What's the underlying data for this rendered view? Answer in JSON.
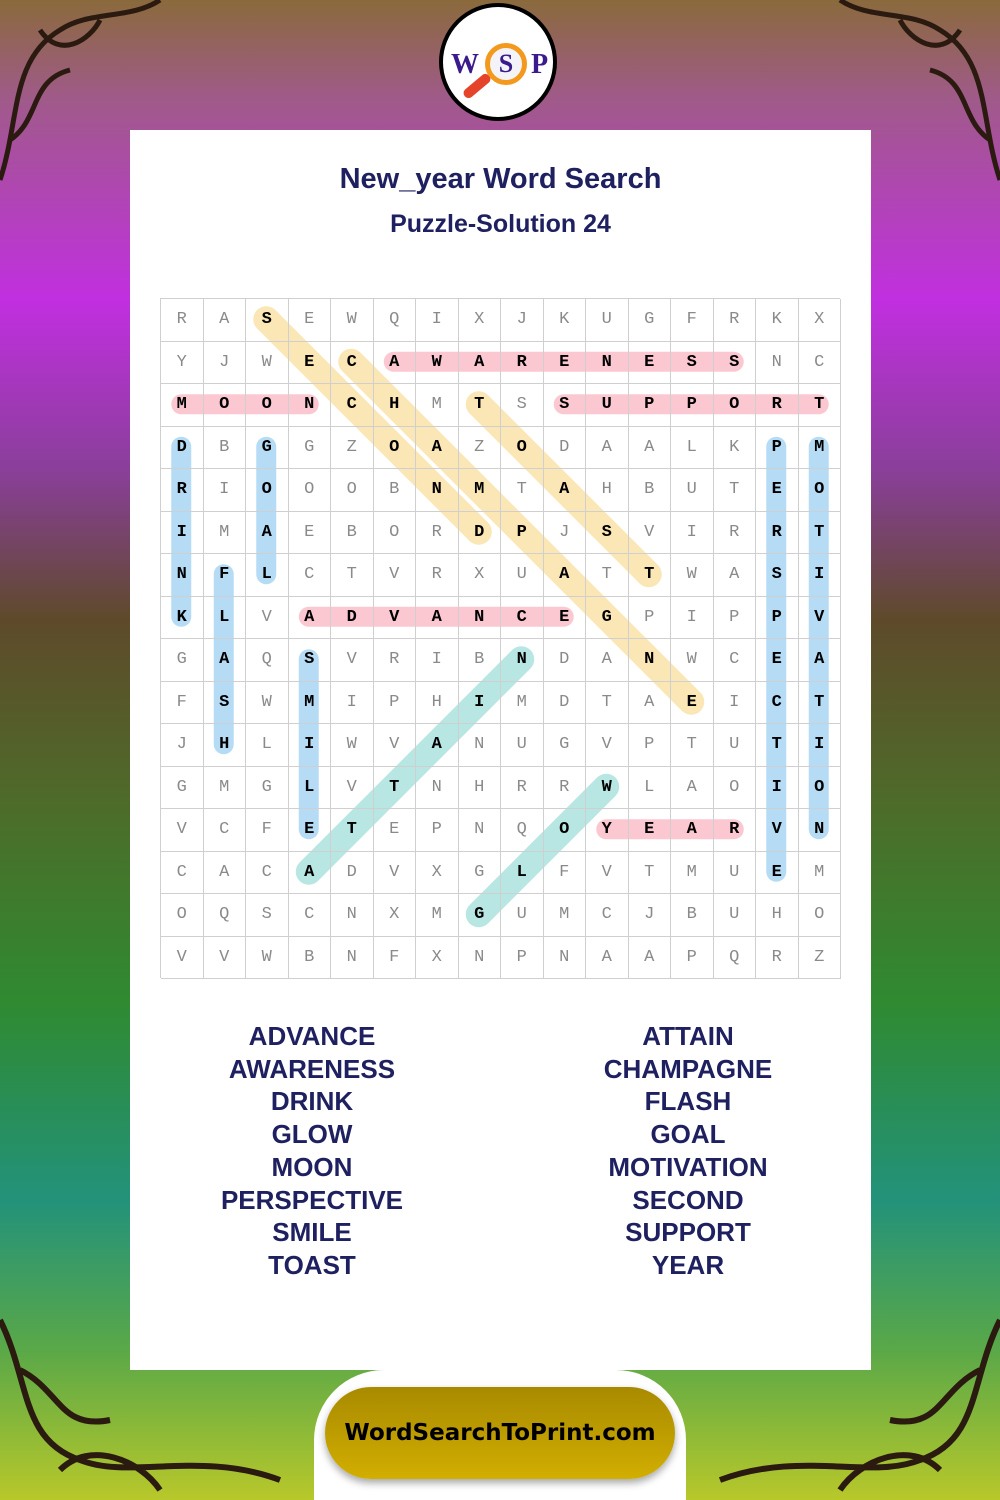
{
  "logo": {
    "letters": [
      "W",
      "S",
      "P"
    ]
  },
  "header": {
    "title": "New_year Word Search",
    "subtitle": "Puzzle-Solution 24"
  },
  "colors": {
    "title": "#1f2060",
    "yellow": "#fbe6b5",
    "pink": "#fbc8d2",
    "blue": "#b6dcf5",
    "teal": "#b8e6e3",
    "footer": "#c4a100"
  },
  "grid": [
    "RASEWQIXJKUGFRKX",
    "YJWECAWARENESSNC",
    "MOONCHMTSSUPPORT",
    "DBGGZOAZODAALKPM",
    "RIOOOBNMTAHBUTEO",
    "IMAEBORDPJSVIRRT",
    "NFLCTVRXUATTWASI",
    "KLVADVANCEGPIPPV",
    "GAQSVRIBNDANWCEA",
    "FSWMIPHIMDTAEICT",
    "JHLIWVANUGVPTUTI",
    "GMGLVTNHRRWLAOIO",
    "VCFETEPNQOYEARVN",
    "CACADVXGLFVTMUEM",
    "OQSCNXMGUMCJBUHO",
    "VVWBNFXNPNAAPQRZ"
  ],
  "solutions": [
    {
      "word": "SECOND",
      "start": [
        0,
        2
      ],
      "end": [
        5,
        7
      ],
      "color": "yellow"
    },
    {
      "word": "CHAMPAGNE",
      "start": [
        1,
        4
      ],
      "end": [
        9,
        12
      ],
      "color": "yellow"
    },
    {
      "word": "TOAST",
      "start": [
        2,
        7
      ],
      "end": [
        6,
        11
      ],
      "color": "yellow"
    },
    {
      "word": "AWARENESS",
      "start": [
        1,
        5
      ],
      "end": [
        1,
        13
      ],
      "color": "pink"
    },
    {
      "word": "MOON",
      "start": [
        2,
        0
      ],
      "end": [
        2,
        3
      ],
      "color": "pink"
    },
    {
      "word": "SUPPORT",
      "start": [
        2,
        9
      ],
      "end": [
        2,
        15
      ],
      "color": "pink"
    },
    {
      "word": "ADVANCE",
      "start": [
        7,
        3
      ],
      "end": [
        7,
        9
      ],
      "color": "pink"
    },
    {
      "word": "YEAR",
      "start": [
        12,
        10
      ],
      "end": [
        12,
        13
      ],
      "color": "pink"
    },
    {
      "word": "DRINK",
      "start": [
        3,
        0
      ],
      "end": [
        7,
        0
      ],
      "color": "blue"
    },
    {
      "word": "GOAL",
      "start": [
        3,
        2
      ],
      "end": [
        6,
        2
      ],
      "color": "blue"
    },
    {
      "word": "FLASH",
      "start": [
        6,
        1
      ],
      "end": [
        10,
        1
      ],
      "color": "blue"
    },
    {
      "word": "SMILE",
      "start": [
        8,
        3
      ],
      "end": [
        12,
        3
      ],
      "color": "blue"
    },
    {
      "word": "PERSPECTIVE",
      "start": [
        3,
        14
      ],
      "end": [
        13,
        14
      ],
      "color": "blue"
    },
    {
      "word": "MOTIVATION",
      "start": [
        3,
        15
      ],
      "end": [
        12,
        15
      ],
      "color": "blue"
    },
    {
      "word": "ATTAIN",
      "start": [
        13,
        3
      ],
      "end": [
        8,
        8
      ],
      "color": "teal"
    },
    {
      "word": "GLOW",
      "start": [
        14,
        7
      ],
      "end": [
        11,
        10
      ],
      "color": "teal"
    }
  ],
  "word_list": {
    "left": [
      "ADVANCE",
      "AWARENESS",
      "DRINK",
      "GLOW",
      "MOON",
      "PERSPECTIVE",
      "SMILE",
      "TOAST"
    ],
    "right": [
      "ATTAIN",
      "CHAMPAGNE",
      "FLASH",
      "GOAL",
      "MOTIVATION",
      "SECOND",
      "SUPPORT",
      "YEAR"
    ]
  },
  "footer": {
    "label": "WordSearchToPrint.com"
  }
}
